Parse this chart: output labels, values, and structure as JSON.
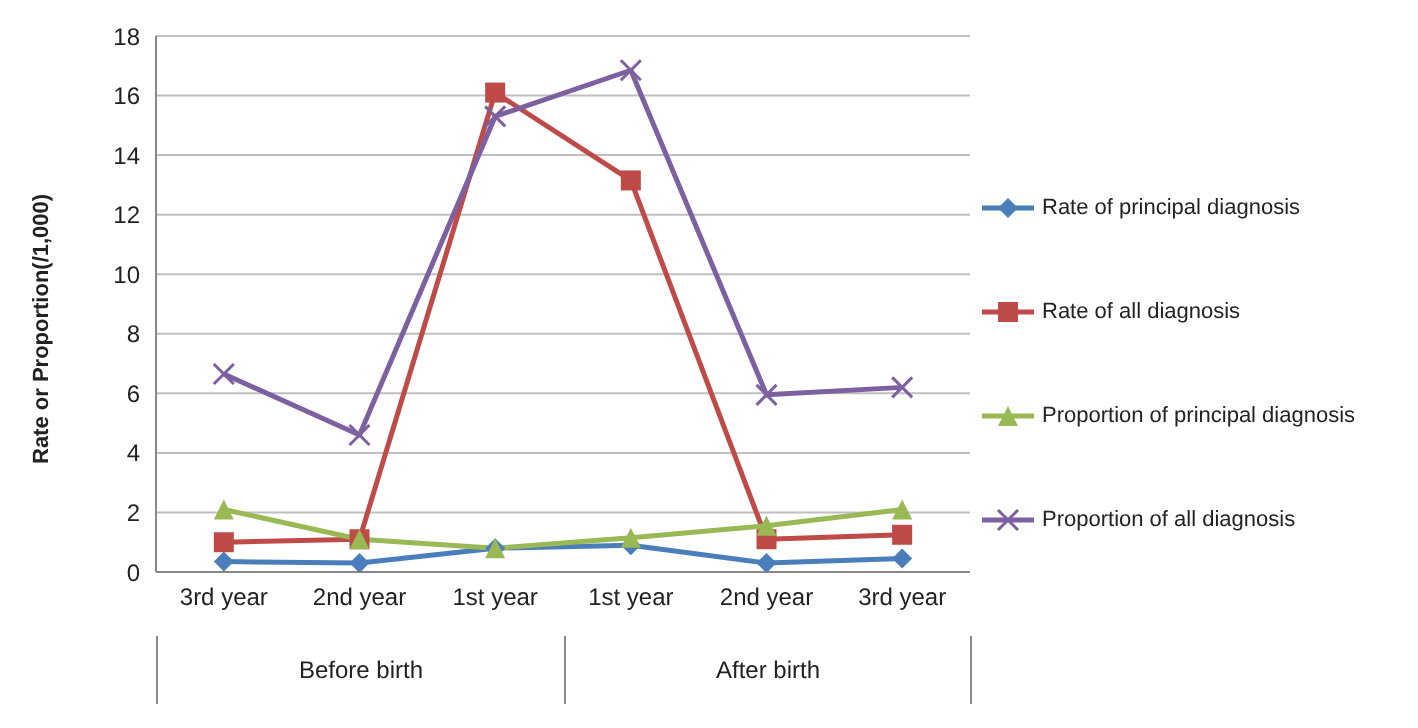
{
  "chart_data": {
    "type": "line",
    "ylabel": "Rate or Proportion(/1,000)",
    "categories": [
      "3rd year",
      "2nd year",
      "1st year",
      "1st year",
      "2nd year",
      "3rd year"
    ],
    "series": [
      {
        "name": "Rate of principal diagnosis",
        "color": "#4a7ebb",
        "marker": "diamond",
        "values": [
          0.35,
          0.3,
          0.8,
          0.9,
          0.3,
          0.45
        ]
      },
      {
        "name": "Rate of all diagnosis",
        "color": "#be4b48",
        "marker": "square",
        "values": [
          1.0,
          1.1,
          16.1,
          13.15,
          1.1,
          1.25
        ]
      },
      {
        "name": "Proportion of principal diagnosis",
        "color": "#98b954",
        "marker": "triangle",
        "values": [
          2.1,
          1.1,
          0.8,
          1.15,
          1.55,
          2.1
        ]
      },
      {
        "name": "Proportion of all diagnosis",
        "color": "#7d60a0",
        "marker": "cross",
        "values": [
          6.65,
          4.6,
          15.3,
          16.85,
          5.95,
          6.2
        ]
      }
    ],
    "ylim": [
      0,
      18
    ],
    "yticks": [
      0,
      2,
      4,
      6,
      8,
      10,
      12,
      14,
      16,
      18
    ],
    "grid": "y",
    "legend": "right",
    "annotations": [
      "Before birth",
      "After birth"
    ]
  }
}
